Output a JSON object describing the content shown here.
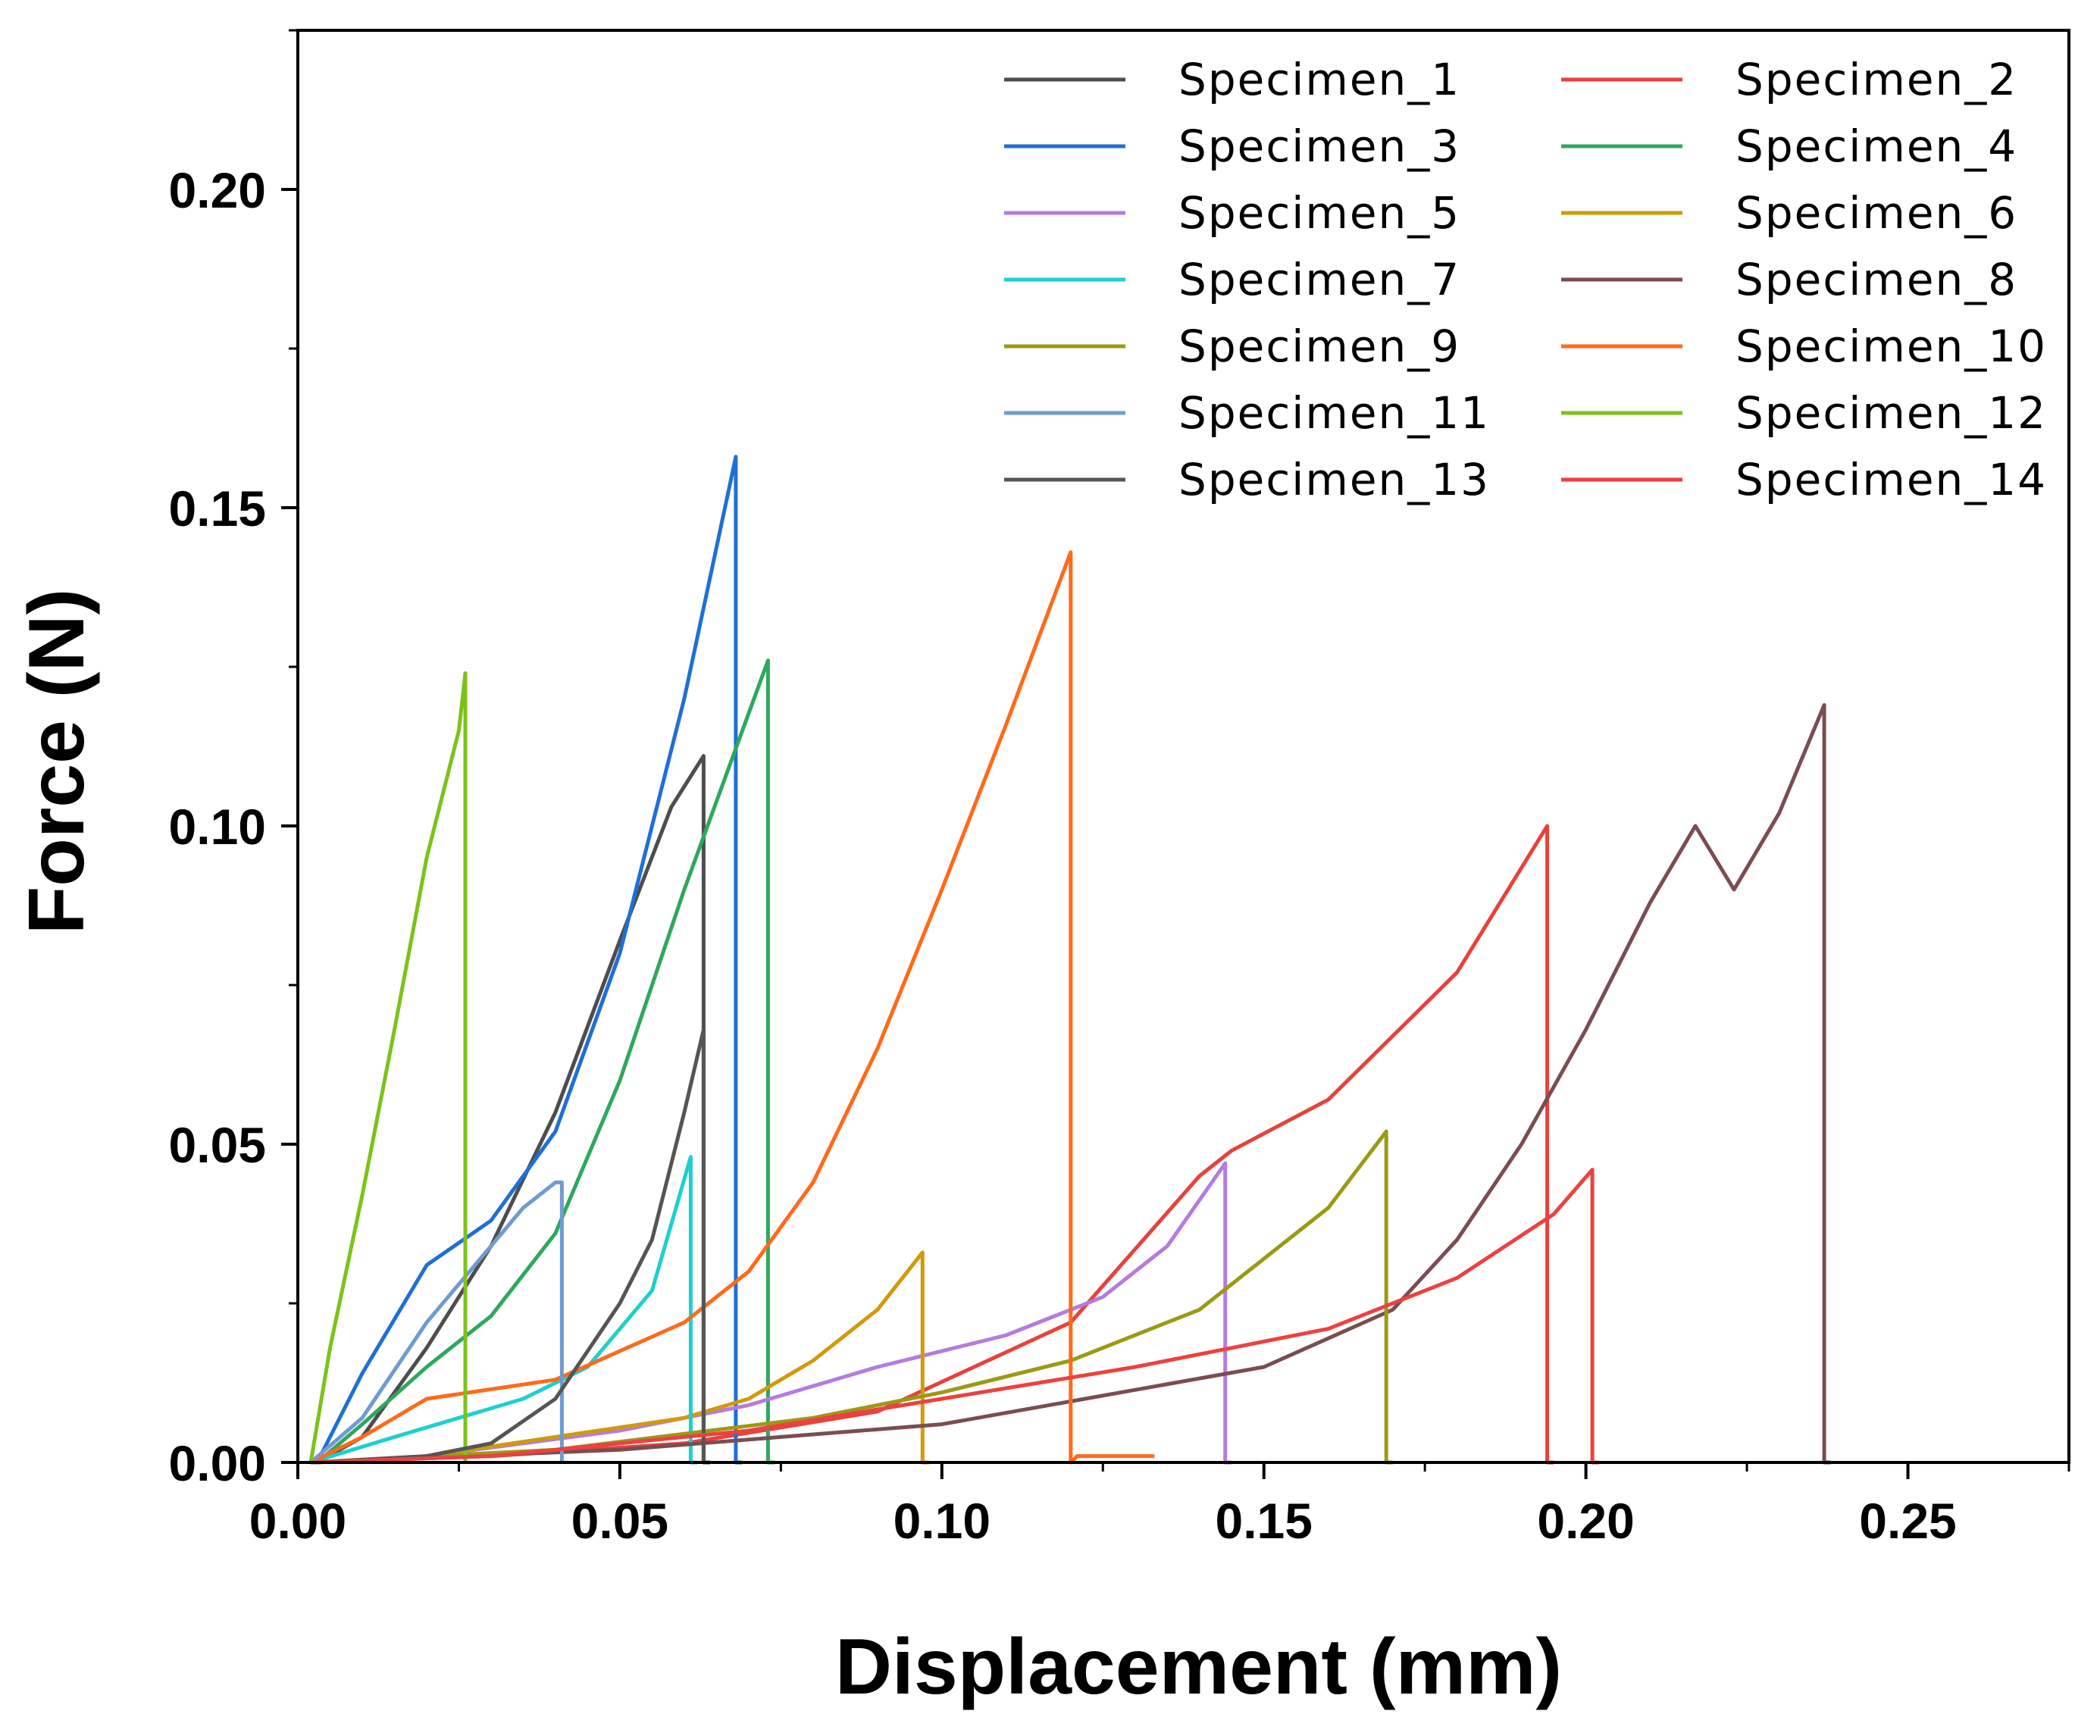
{
  "chart_data": {
    "type": "line",
    "title": "",
    "xlabel": "Displacement (mm)",
    "ylabel": "Force (N)",
    "xlim": [
      0,
      0.275
    ],
    "ylim": [
      0,
      0.225
    ],
    "x_ticks": [
      "0.00",
      "0.05",
      "0.10",
      "0.15",
      "0.20",
      "0.25"
    ],
    "x_tick_values": [
      0,
      0.05,
      0.1,
      0.15,
      0.2,
      0.25
    ],
    "y_ticks": [
      "0.00",
      "0.05",
      "0.10",
      "0.15",
      "0.20"
    ],
    "y_tick_values": [
      0,
      0.05,
      0.1,
      0.15,
      0.2
    ],
    "legend_position": "top-right",
    "series": [
      {
        "name": "Specimen_1",
        "color": "#4d4d4d",
        "x": [
          0.003,
          0.01,
          0.02,
          0.03,
          0.04,
          0.05,
          0.058,
          0.063,
          0.063,
          0.064
        ],
        "y": [
          0,
          0.004,
          0.018,
          0.034,
          0.055,
          0.082,
          0.103,
          0.111,
          0,
          0
        ]
      },
      {
        "name": "Specimen_2",
        "color": "#e8413b",
        "x": [
          0.002,
          0.03,
          0.06,
          0.09,
          0.12,
          0.14,
          0.145,
          0.16,
          0.18,
          0.194,
          0.194,
          0.195
        ],
        "y": [
          0,
          0.001,
          0.003,
          0.008,
          0.022,
          0.045,
          0.049,
          0.057,
          0.077,
          0.1,
          0,
          0
        ]
      },
      {
        "name": "Specimen_3",
        "color": "#1f6fd6",
        "x": [
          0.003,
          0.01,
          0.02,
          0.03,
          0.04,
          0.05,
          0.06,
          0.068,
          0.068,
          0.069
        ],
        "y": [
          0,
          0.014,
          0.031,
          0.038,
          0.052,
          0.08,
          0.12,
          0.158,
          0,
          0
        ]
      },
      {
        "name": "Specimen_4",
        "color": "#2ea85d",
        "x": [
          0.003,
          0.01,
          0.02,
          0.03,
          0.04,
          0.05,
          0.06,
          0.073,
          0.073,
          0.074
        ],
        "y": [
          0,
          0.006,
          0.015,
          0.023,
          0.036,
          0.06,
          0.09,
          0.126,
          0,
          0
        ]
      },
      {
        "name": "Specimen_5",
        "color": "#b57be0",
        "x": [
          0.002,
          0.02,
          0.05,
          0.07,
          0.09,
          0.11,
          0.125,
          0.135,
          0.144,
          0.144,
          0.145
        ],
        "y": [
          0,
          0.001,
          0.005,
          0.009,
          0.015,
          0.02,
          0.026,
          0.034,
          0.047,
          0,
          0
        ]
      },
      {
        "name": "Specimen_6",
        "color": "#d19a0a",
        "x": [
          0.002,
          0.02,
          0.04,
          0.06,
          0.07,
          0.08,
          0.09,
          0.097,
          0.097,
          0.098
        ],
        "y": [
          0,
          0.001,
          0.004,
          0.007,
          0.01,
          0.016,
          0.024,
          0.033,
          0,
          0
        ]
      },
      {
        "name": "Specimen_7",
        "color": "#1ecfcf",
        "x": [
          0.002,
          0.015,
          0.025,
          0.035,
          0.045,
          0.055,
          0.061,
          0.061,
          0.062
        ],
        "y": [
          0,
          0.004,
          0.007,
          0.01,
          0.015,
          0.027,
          0.048,
          0,
          0
        ]
      },
      {
        "name": "Specimen_8",
        "color": "#7a4d50",
        "x": [
          0.002,
          0.05,
          0.1,
          0.15,
          0.17,
          0.18,
          0.19,
          0.2,
          0.21,
          0.217,
          0.223,
          0.23,
          0.237,
          0.237,
          0.238
        ],
        "y": [
          0,
          0.002,
          0.006,
          0.015,
          0.024,
          0.035,
          0.05,
          0.068,
          0.088,
          0.1,
          0.09,
          0.102,
          0.119,
          0,
          0
        ]
      },
      {
        "name": "Specimen_9",
        "color": "#9a9a14",
        "x": [
          0.002,
          0.04,
          0.08,
          0.1,
          0.12,
          0.14,
          0.16,
          0.169,
          0.169,
          0.17
        ],
        "y": [
          0,
          0.002,
          0.007,
          0.011,
          0.016,
          0.024,
          0.04,
          0.052,
          0,
          0
        ]
      },
      {
        "name": "Specimen_10",
        "color": "#ff6a1a",
        "x": [
          0.002,
          0.01,
          0.02,
          0.04,
          0.06,
          0.07,
          0.08,
          0.09,
          0.1,
          0.11,
          0.12,
          0.12,
          0.121,
          0.133
        ],
        "y": [
          0,
          0.004,
          0.01,
          0.013,
          0.022,
          0.03,
          0.044,
          0.065,
          0.09,
          0.116,
          0.143,
          0,
          0.001,
          0.001
        ]
      },
      {
        "name": "Specimen_11",
        "color": "#6f9bd1",
        "x": [
          0.002,
          0.01,
          0.02,
          0.03,
          0.035,
          0.04,
          0.041,
          0.041
        ],
        "y": [
          0,
          0.007,
          0.022,
          0.034,
          0.04,
          0.044,
          0.044,
          0
        ]
      },
      {
        "name": "Specimen_12",
        "color": "#7cc21b",
        "x": [
          0.002,
          0.005,
          0.01,
          0.015,
          0.02,
          0.025,
          0.026,
          0.026
        ],
        "y": [
          0,
          0.018,
          0.042,
          0.068,
          0.095,
          0.115,
          0.124,
          0
        ]
      },
      {
        "name": "Specimen_13",
        "color": "#555555",
        "x": [
          0.003,
          0.02,
          0.03,
          0.04,
          0.05,
          0.055,
          0.06,
          0.063,
          0.063,
          0.064
        ],
        "y": [
          0,
          0.001,
          0.003,
          0.01,
          0.025,
          0.035,
          0.055,
          0.068,
          0,
          0
        ]
      },
      {
        "name": "Specimen_14",
        "color": "#ee4040",
        "x": [
          0.002,
          0.03,
          0.07,
          0.1,
          0.13,
          0.16,
          0.18,
          0.195,
          0.201,
          0.201,
          0.202
        ],
        "y": [
          0,
          0.001,
          0.005,
          0.01,
          0.015,
          0.021,
          0.029,
          0.039,
          0.046,
          0,
          0
        ]
      }
    ]
  }
}
